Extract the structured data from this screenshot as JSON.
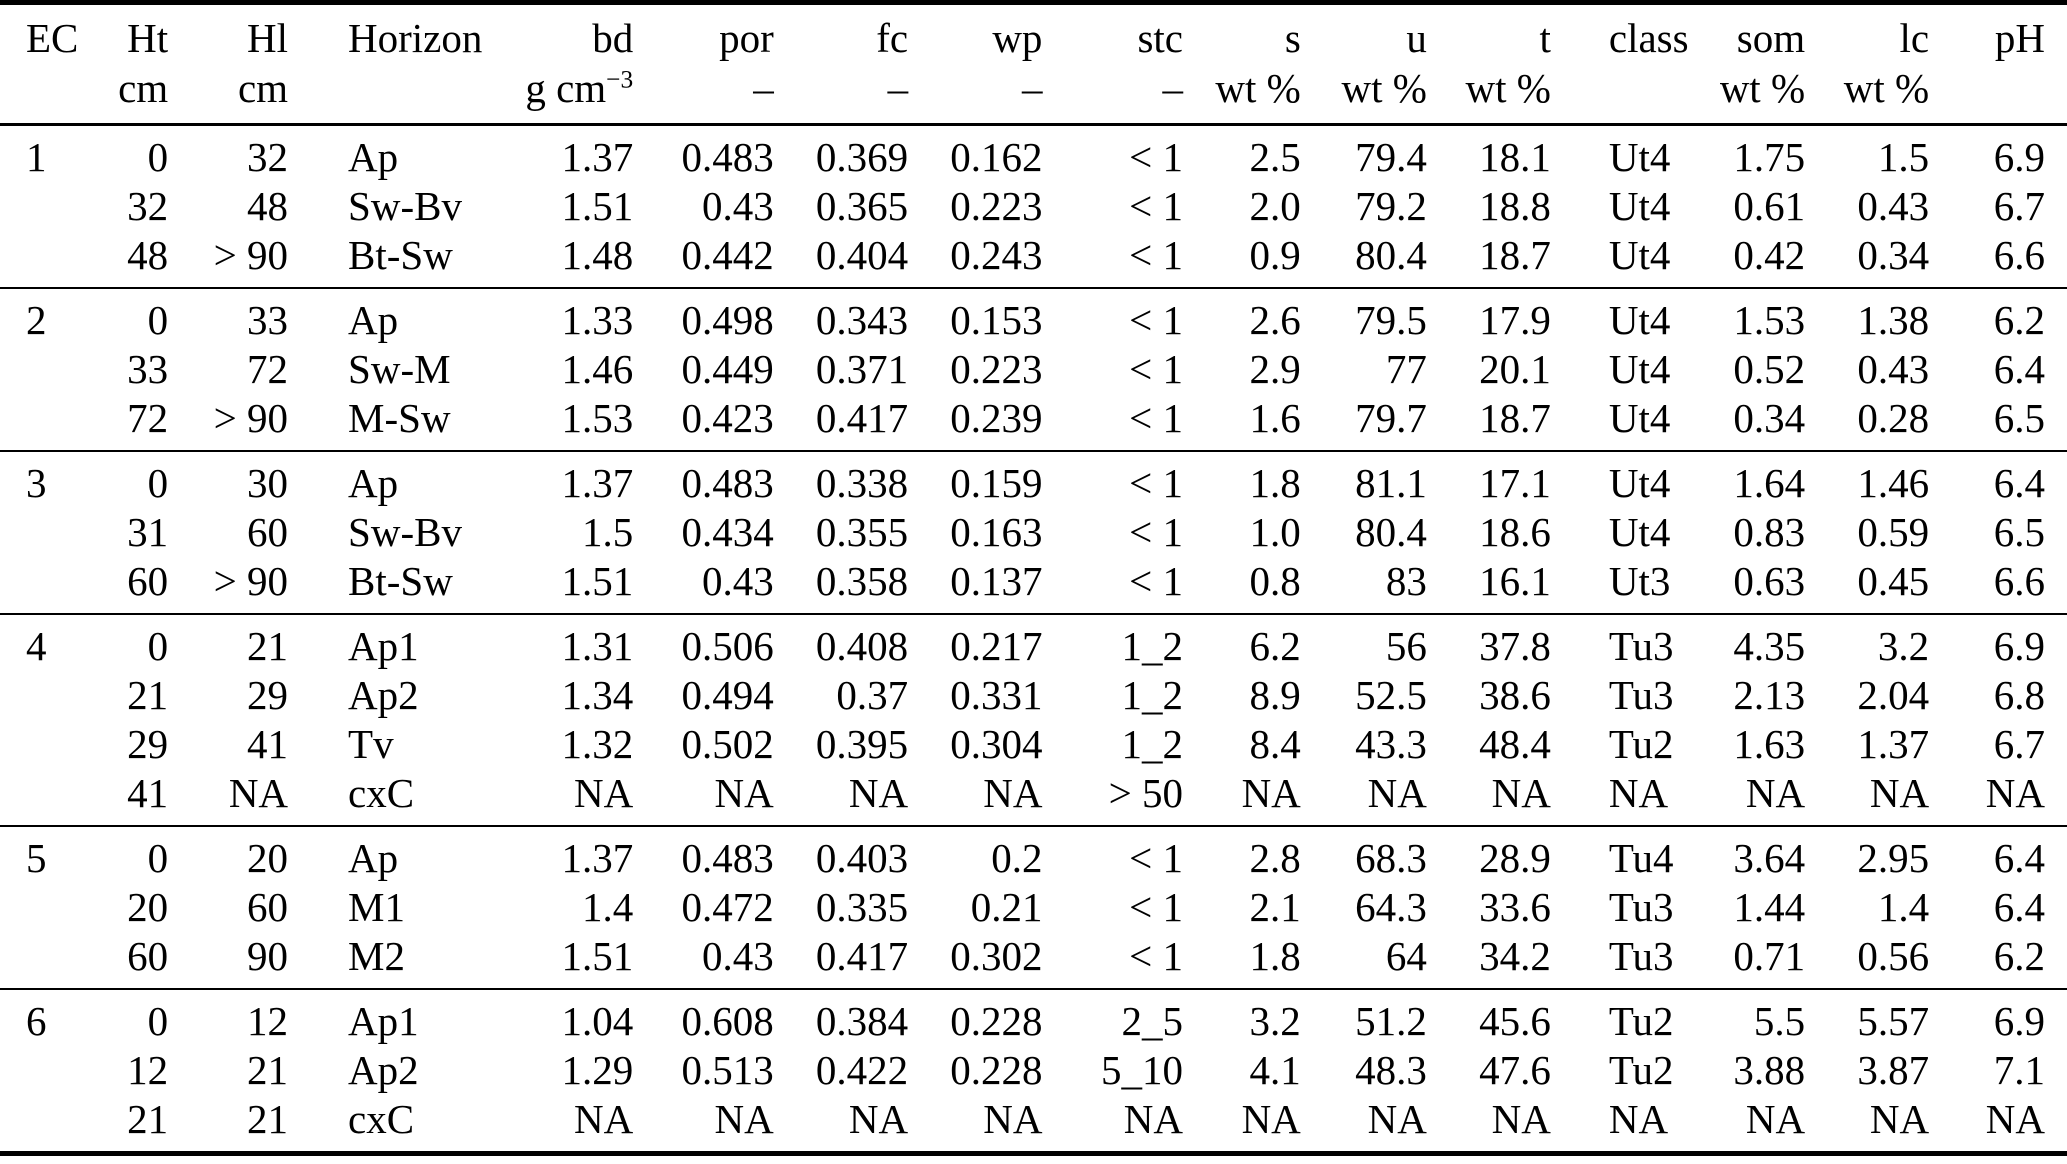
{
  "table": {
    "columns": [
      {
        "key": "ec",
        "label": "EC",
        "unit": ""
      },
      {
        "key": "ht",
        "label": "Ht",
        "unit": "cm"
      },
      {
        "key": "hl",
        "label": "Hl",
        "unit": "cm"
      },
      {
        "key": "horizon",
        "label": "Horizon",
        "unit": ""
      },
      {
        "key": "bd",
        "label": "bd",
        "unit_base": "g cm",
        "unit_sup": "−3"
      },
      {
        "key": "por",
        "label": "por",
        "unit": "–"
      },
      {
        "key": "fc",
        "label": "fc",
        "unit": "–"
      },
      {
        "key": "wp",
        "label": "wp",
        "unit": "–"
      },
      {
        "key": "stc",
        "label": "stc",
        "unit": "–"
      },
      {
        "key": "s",
        "label": "s",
        "unit": "wt %"
      },
      {
        "key": "u",
        "label": "u",
        "unit": "wt %"
      },
      {
        "key": "t",
        "label": "t",
        "unit": "wt %"
      },
      {
        "key": "class",
        "label": "class",
        "unit": ""
      },
      {
        "key": "som",
        "label": "som",
        "unit": "wt %"
      },
      {
        "key": "lc",
        "label": "lc",
        "unit": "wt %"
      },
      {
        "key": "ph",
        "label": "pH",
        "unit": ""
      }
    ],
    "groups": [
      {
        "ec": "1",
        "rows": [
          [
            "1",
            "0",
            "32",
            "Ap",
            "1.37",
            "0.483",
            "0.369",
            "0.162",
            "< 1",
            "2.5",
            "79.4",
            "18.1",
            "Ut4",
            "1.75",
            "1.5",
            "6.9"
          ],
          [
            "",
            "32",
            "48",
            "Sw-Bv",
            "1.51",
            "0.43",
            "0.365",
            "0.223",
            "< 1",
            "2.0",
            "79.2",
            "18.8",
            "Ut4",
            "0.61",
            "0.43",
            "6.7"
          ],
          [
            "",
            "48",
            "> 90",
            "Bt-Sw",
            "1.48",
            "0.442",
            "0.404",
            "0.243",
            "< 1",
            "0.9",
            "80.4",
            "18.7",
            "Ut4",
            "0.42",
            "0.34",
            "6.6"
          ]
        ]
      },
      {
        "ec": "2",
        "rows": [
          [
            "2",
            "0",
            "33",
            "Ap",
            "1.33",
            "0.498",
            "0.343",
            "0.153",
            "< 1",
            "2.6",
            "79.5",
            "17.9",
            "Ut4",
            "1.53",
            "1.38",
            "6.2"
          ],
          [
            "",
            "33",
            "72",
            "Sw-M",
            "1.46",
            "0.449",
            "0.371",
            "0.223",
            "< 1",
            "2.9",
            "77",
            "20.1",
            "Ut4",
            "0.52",
            "0.43",
            "6.4"
          ],
          [
            "",
            "72",
            "> 90",
            "M-Sw",
            "1.53",
            "0.423",
            "0.417",
            "0.239",
            "< 1",
            "1.6",
            "79.7",
            "18.7",
            "Ut4",
            "0.34",
            "0.28",
            "6.5"
          ]
        ]
      },
      {
        "ec": "3",
        "rows": [
          [
            "3",
            "0",
            "30",
            "Ap",
            "1.37",
            "0.483",
            "0.338",
            "0.159",
            "< 1",
            "1.8",
            "81.1",
            "17.1",
            "Ut4",
            "1.64",
            "1.46",
            "6.4"
          ],
          [
            "",
            "31",
            "60",
            "Sw-Bv",
            "1.5",
            "0.434",
            "0.355",
            "0.163",
            "< 1",
            "1.0",
            "80.4",
            "18.6",
            "Ut4",
            "0.83",
            "0.59",
            "6.5"
          ],
          [
            "",
            "60",
            "> 90",
            "Bt-Sw",
            "1.51",
            "0.43",
            "0.358",
            "0.137",
            "< 1",
            "0.8",
            "83",
            "16.1",
            "Ut3",
            "0.63",
            "0.45",
            "6.6"
          ]
        ]
      },
      {
        "ec": "4",
        "rows": [
          [
            "4",
            "0",
            "21",
            "Ap1",
            "1.31",
            "0.506",
            "0.408",
            "0.217",
            "1_2",
            "6.2",
            "56",
            "37.8",
            "Tu3",
            "4.35",
            "3.2",
            "6.9"
          ],
          [
            "",
            "21",
            "29",
            "Ap2",
            "1.34",
            "0.494",
            "0.37",
            "0.331",
            "1_2",
            "8.9",
            "52.5",
            "38.6",
            "Tu3",
            "2.13",
            "2.04",
            "6.8"
          ],
          [
            "",
            "29",
            "41",
            "Tv",
            "1.32",
            "0.502",
            "0.395",
            "0.304",
            "1_2",
            "8.4",
            "43.3",
            "48.4",
            "Tu2",
            "1.63",
            "1.37",
            "6.7"
          ],
          [
            "",
            "41",
            "NA",
            "cxC",
            "NA",
            "NA",
            "NA",
            "NA",
            "> 50",
            "NA",
            "NA",
            "NA",
            "NA",
            "NA",
            "NA",
            "NA"
          ]
        ]
      },
      {
        "ec": "5",
        "rows": [
          [
            "5",
            "0",
            "20",
            "Ap",
            "1.37",
            "0.483",
            "0.403",
            "0.2",
            "< 1",
            "2.8",
            "68.3",
            "28.9",
            "Tu4",
            "3.64",
            "2.95",
            "6.4"
          ],
          [
            "",
            "20",
            "60",
            "M1",
            "1.4",
            "0.472",
            "0.335",
            "0.21",
            "< 1",
            "2.1",
            "64.3",
            "33.6",
            "Tu3",
            "1.44",
            "1.4",
            "6.4"
          ],
          [
            "",
            "60",
            "90",
            "M2",
            "1.51",
            "0.43",
            "0.417",
            "0.302",
            "< 1",
            "1.8",
            "64",
            "34.2",
            "Tu3",
            "0.71",
            "0.56",
            "6.2"
          ]
        ]
      },
      {
        "ec": "6",
        "rows": [
          [
            "6",
            "0",
            "12",
            "Ap1",
            "1.04",
            "0.608",
            "0.384",
            "0.228",
            "2_5",
            "3.2",
            "51.2",
            "45.6",
            "Tu2",
            "5.5",
            "5.57",
            "6.9"
          ],
          [
            "",
            "12",
            "21",
            "Ap2",
            "1.29",
            "0.513",
            "0.422",
            "0.228",
            "5_10",
            "4.1",
            "48.3",
            "47.6",
            "Tu2",
            "3.88",
            "3.87",
            "7.1"
          ],
          [
            "",
            "21",
            "21",
            "cxC",
            "NA",
            "NA",
            "NA",
            "NA",
            "NA",
            "NA",
            "NA",
            "NA",
            "NA",
            "NA",
            "NA",
            "NA"
          ]
        ]
      }
    ]
  }
}
